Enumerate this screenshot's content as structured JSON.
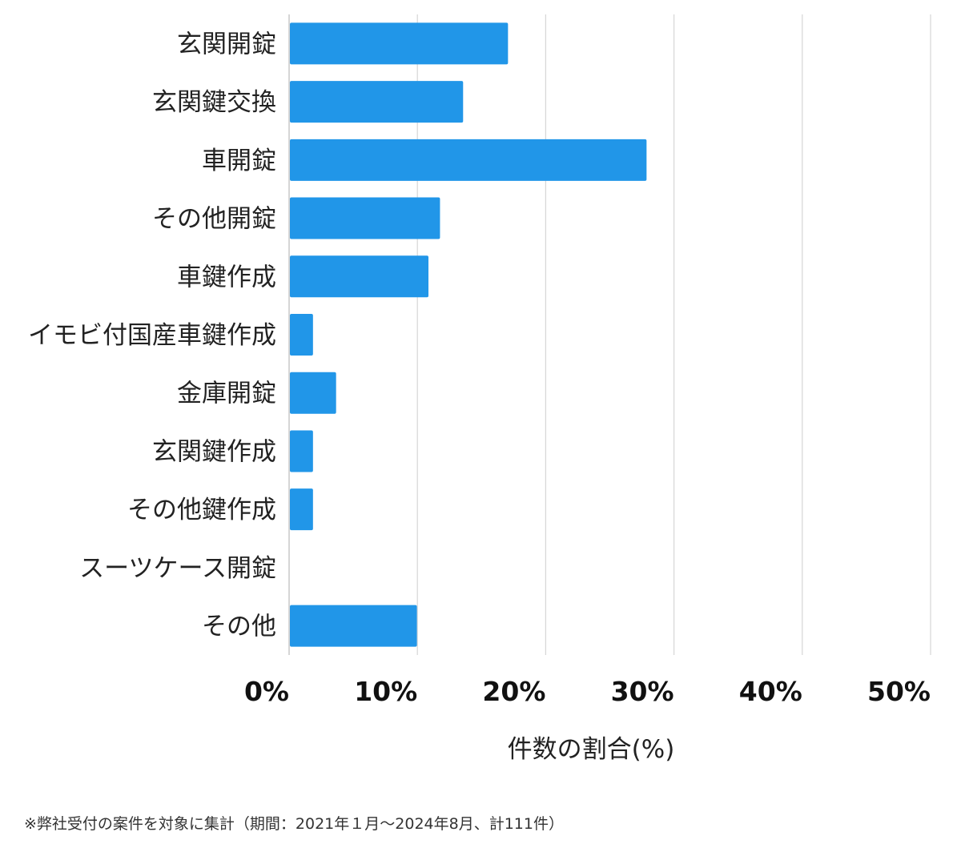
{
  "chart_data": {
    "type": "bar",
    "orientation": "horizontal",
    "categories": [
      "玄関開錠",
      "玄関鍵交換",
      "車開錠",
      "その他開錠",
      "車鍵作成",
      "イモビ付国産車鍵作成",
      "金庫開錠",
      "玄関鍵作成",
      "その他鍵作成",
      "スーツケース開錠",
      "その他"
    ],
    "values": [
      17,
      13.5,
      27.8,
      11.7,
      10.8,
      1.8,
      3.6,
      1.8,
      1.8,
      0,
      9.9
    ],
    "xlabel": "件数の割合(%)",
    "ylabel": "",
    "xlim": [
      0,
      50
    ],
    "ticks": [
      0,
      10,
      20,
      30,
      40,
      50
    ],
    "tick_labels": [
      "0%",
      "10%",
      "20%",
      "30%",
      "40%",
      "50%"
    ],
    "grid": true,
    "bar_color": "#2196e8"
  },
  "footnote": "※弊社受付の案件を対象に集計（期間：2021年１月〜2024年8月、計111件）"
}
